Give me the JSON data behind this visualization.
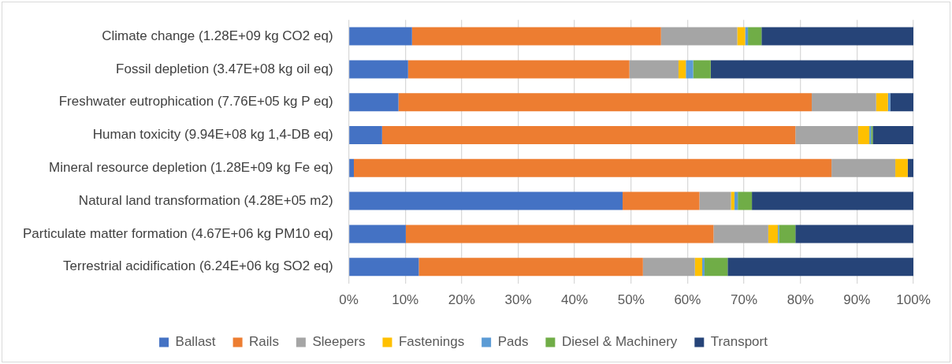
{
  "chart_data": {
    "type": "bar",
    "orientation": "horizontal",
    "stacked": true,
    "categories": [
      "Climate change (1.28E+09 kg CO2 eq)",
      "Fossil depletion (3.47E+08 kg oil eq)",
      "Freshwater eutrophication (7.76E+05 kg P eq)",
      "Human toxicity (9.94E+08 kg 1,4-DB eq)",
      "Mineral resource depletion (1.28E+09 kg Fe eq)",
      "Natural land transformation (4.28E+05 m2)",
      "Particulate matter formation (4.67E+06 kg PM10 eq)",
      "Terrestrial acidification (6.24E+06 kg SO2 eq)"
    ],
    "series": [
      {
        "name": "Ballast",
        "color": "#4472c4",
        "values": [
          11.2,
          10.5,
          8.8,
          5.9,
          0.9,
          48.5,
          10.1,
          12.4
        ]
      },
      {
        "name": "Rails",
        "color": "#ed7d31",
        "values": [
          44.1,
          39.2,
          73.2,
          73.2,
          84.6,
          13.6,
          54.5,
          39.7
        ]
      },
      {
        "name": "Sleepers",
        "color": "#a5a5a5",
        "values": [
          13.5,
          8.7,
          11.4,
          11.1,
          11.3,
          5.6,
          9.7,
          9.2
        ]
      },
      {
        "name": "Fastenings",
        "color": "#ffc000",
        "values": [
          1.4,
          1.3,
          2.1,
          2.0,
          2.2,
          0.6,
          1.7,
          1.3
        ]
      },
      {
        "name": "Pads",
        "color": "#5b9bd5",
        "values": [
          0.5,
          1.3,
          0.4,
          0.3,
          0,
          0.6,
          0.2,
          0.4
        ]
      },
      {
        "name": "Diesel & Machinery",
        "color": "#70ad47",
        "values": [
          2.4,
          3.1,
          0,
          0.3,
          0,
          2.5,
          2.9,
          4.1
        ]
      },
      {
        "name": "Transport",
        "color": "#264478",
        "values": [
          26.9,
          35.9,
          4.1,
          7.2,
          1.0,
          28.6,
          20.9,
          32.9
        ]
      }
    ],
    "xlim": [
      0,
      100
    ],
    "xticks": [
      {
        "value": 0,
        "label": "0%"
      },
      {
        "value": 10,
        "label": "10%"
      },
      {
        "value": 20,
        "label": "20%"
      },
      {
        "value": 30,
        "label": "30%"
      },
      {
        "value": 40,
        "label": "40%"
      },
      {
        "value": 50,
        "label": "50%"
      },
      {
        "value": 60,
        "label": "60%"
      },
      {
        "value": 70,
        "label": "70%"
      },
      {
        "value": 80,
        "label": "80%"
      },
      {
        "value": 90,
        "label": "90%"
      },
      {
        "value": 100,
        "label": "100%"
      }
    ],
    "grid": "x",
    "legend": "bottom"
  }
}
